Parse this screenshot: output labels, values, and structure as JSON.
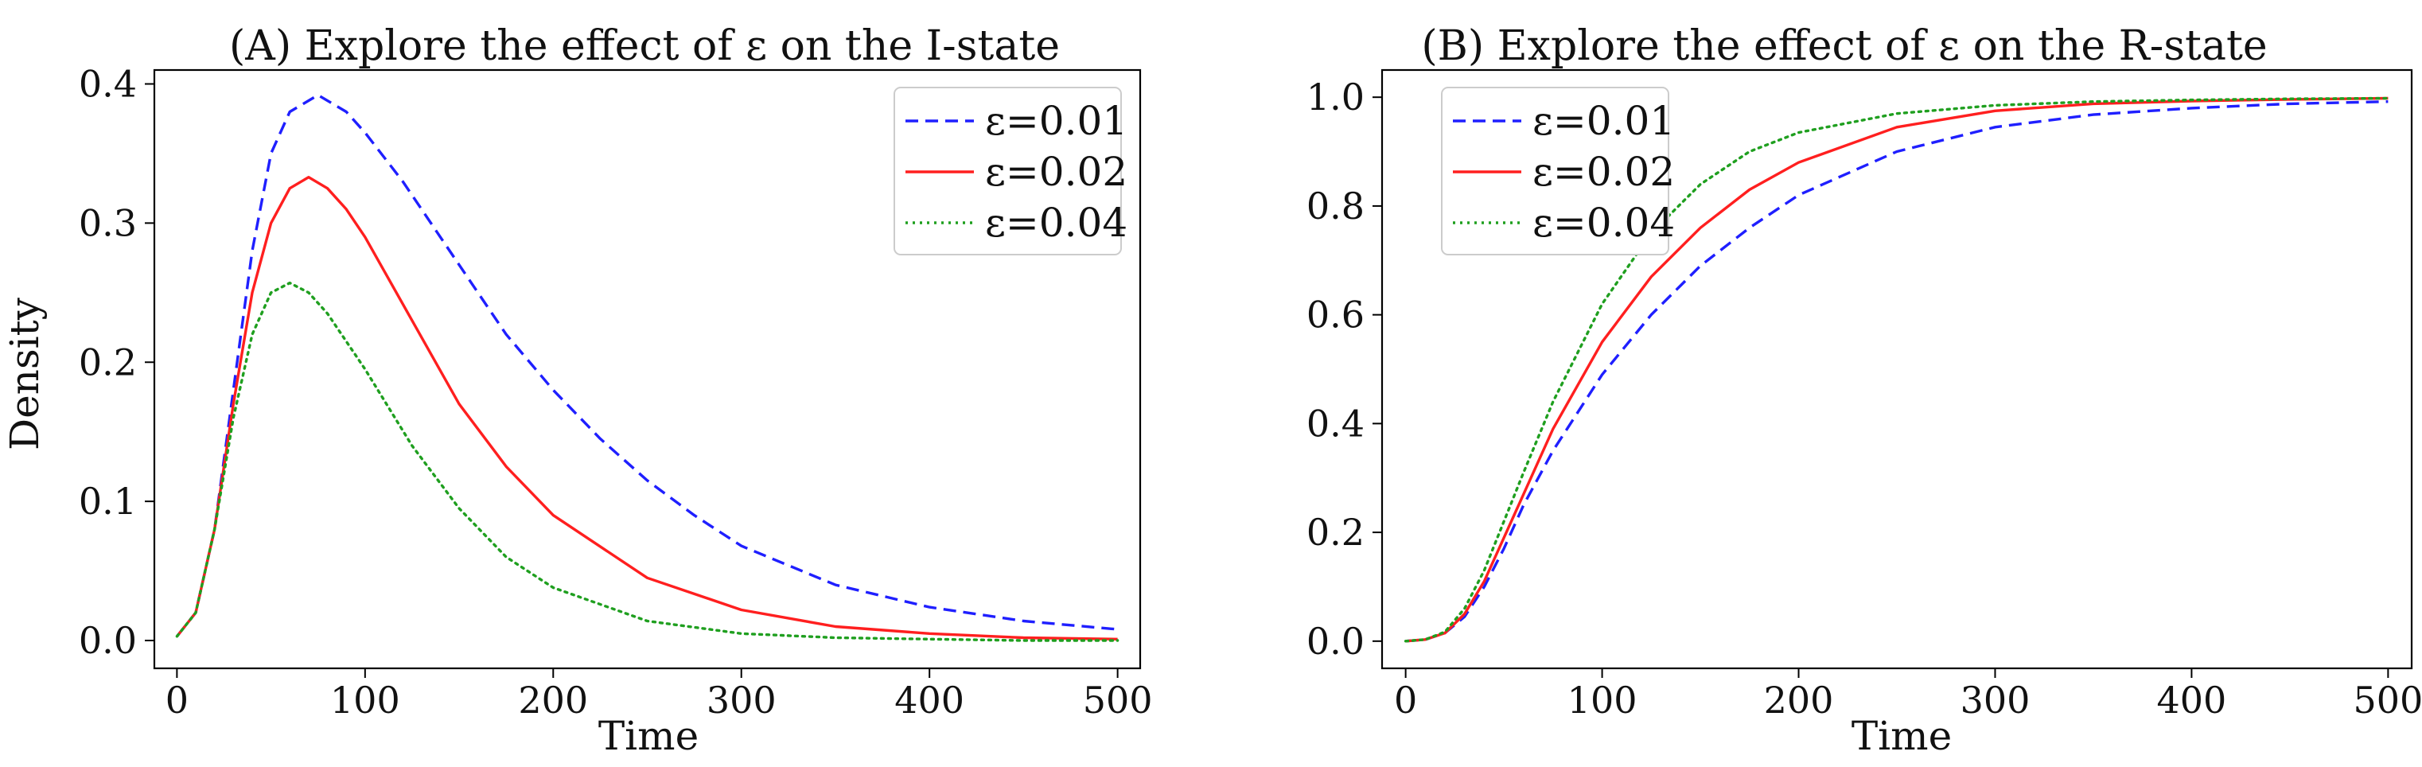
{
  "chart_data": [
    {
      "type": "line",
      "title": "(A) Explore the effect of ε on the I-state",
      "xlabel": "Time",
      "ylabel": "Density",
      "xlim": [
        -12,
        512
      ],
      "ylim": [
        -0.02,
        0.41
      ],
      "xticks": [
        0,
        100,
        200,
        300,
        400,
        500
      ],
      "xtick_labels": [
        "0",
        "100",
        "200",
        "300",
        "400",
        "500"
      ],
      "yticks": [
        0.0,
        0.1,
        0.2,
        0.3,
        0.4
      ],
      "ytick_labels": [
        "0.0",
        "0.1",
        "0.2",
        "0.3",
        "0.4"
      ],
      "grid": false,
      "legend_position": "top-right",
      "series": [
        {
          "name": "ε=0.01",
          "color": "#1f1fff",
          "dash": "dashed",
          "x": [
            0,
            10,
            20,
            30,
            40,
            50,
            60,
            75,
            90,
            100,
            120,
            150,
            175,
            200,
            225,
            250,
            275,
            300,
            350,
            400,
            450,
            500
          ],
          "y": [
            0.003,
            0.02,
            0.08,
            0.18,
            0.28,
            0.35,
            0.38,
            0.392,
            0.38,
            0.365,
            0.33,
            0.27,
            0.22,
            0.18,
            0.145,
            0.115,
            0.09,
            0.068,
            0.04,
            0.024,
            0.014,
            0.008
          ]
        },
        {
          "name": "ε=0.02",
          "color": "#ff1f1f",
          "dash": "solid",
          "x": [
            0,
            10,
            20,
            30,
            40,
            50,
            60,
            70,
            80,
            90,
            100,
            125,
            150,
            175,
            200,
            250,
            300,
            350,
            400,
            450,
            500
          ],
          "y": [
            0.003,
            0.02,
            0.08,
            0.17,
            0.25,
            0.3,
            0.325,
            0.333,
            0.325,
            0.31,
            0.29,
            0.23,
            0.17,
            0.125,
            0.09,
            0.045,
            0.022,
            0.01,
            0.005,
            0.002,
            0.001
          ]
        },
        {
          "name": "ε=0.04",
          "color": "#1f9f1f",
          "dash": "dotted",
          "x": [
            0,
            10,
            20,
            30,
            40,
            50,
            60,
            70,
            80,
            100,
            125,
            150,
            175,
            200,
            250,
            300,
            350,
            400,
            450,
            500
          ],
          "y": [
            0.003,
            0.02,
            0.08,
            0.16,
            0.22,
            0.25,
            0.257,
            0.25,
            0.235,
            0.195,
            0.14,
            0.095,
            0.06,
            0.038,
            0.014,
            0.005,
            0.002,
            0.001,
            0.0,
            0.0
          ]
        }
      ]
    },
    {
      "type": "line",
      "title": "(B) Explore the effect of ε on the R-state",
      "xlabel": "Time",
      "ylabel": "",
      "xlim": [
        -12,
        512
      ],
      "ylim": [
        -0.05,
        1.05
      ],
      "xticks": [
        0,
        100,
        200,
        300,
        400,
        500
      ],
      "xtick_labels": [
        "0",
        "100",
        "200",
        "300",
        "400",
        "500"
      ],
      "yticks": [
        0.0,
        0.2,
        0.4,
        0.6,
        0.8,
        1.0
      ],
      "ytick_labels": [
        "0.0",
        "0.2",
        "0.4",
        "0.6",
        "0.8",
        "1.0"
      ],
      "grid": false,
      "legend_position": "top-left",
      "series": [
        {
          "name": "ε=0.01",
          "color": "#1f1fff",
          "dash": "dashed",
          "x": [
            0,
            10,
            20,
            30,
            40,
            50,
            60,
            75,
            100,
            125,
            150,
            175,
            200,
            250,
            300,
            350,
            400,
            450,
            500
          ],
          "y": [
            0.0,
            0.003,
            0.015,
            0.045,
            0.1,
            0.17,
            0.25,
            0.35,
            0.49,
            0.6,
            0.69,
            0.76,
            0.82,
            0.9,
            0.945,
            0.968,
            0.98,
            0.988,
            0.992
          ]
        },
        {
          "name": "ε=0.02",
          "color": "#ff1f1f",
          "dash": "solid",
          "x": [
            0,
            10,
            20,
            30,
            40,
            50,
            60,
            75,
            100,
            125,
            150,
            175,
            200,
            250,
            300,
            350,
            400,
            450,
            500
          ],
          "y": [
            0.0,
            0.003,
            0.015,
            0.05,
            0.11,
            0.19,
            0.27,
            0.39,
            0.55,
            0.67,
            0.76,
            0.83,
            0.88,
            0.945,
            0.975,
            0.988,
            0.993,
            0.996,
            0.998
          ]
        },
        {
          "name": "ε=0.04",
          "color": "#1f9f1f",
          "dash": "dotted",
          "x": [
            0,
            10,
            20,
            30,
            40,
            50,
            60,
            75,
            100,
            125,
            150,
            175,
            200,
            250,
            300,
            350,
            400,
            450,
            500
          ],
          "y": [
            0.0,
            0.003,
            0.017,
            0.06,
            0.13,
            0.22,
            0.31,
            0.44,
            0.62,
            0.75,
            0.84,
            0.9,
            0.935,
            0.97,
            0.985,
            0.992,
            0.995,
            0.997,
            0.998
          ]
        }
      ]
    }
  ]
}
